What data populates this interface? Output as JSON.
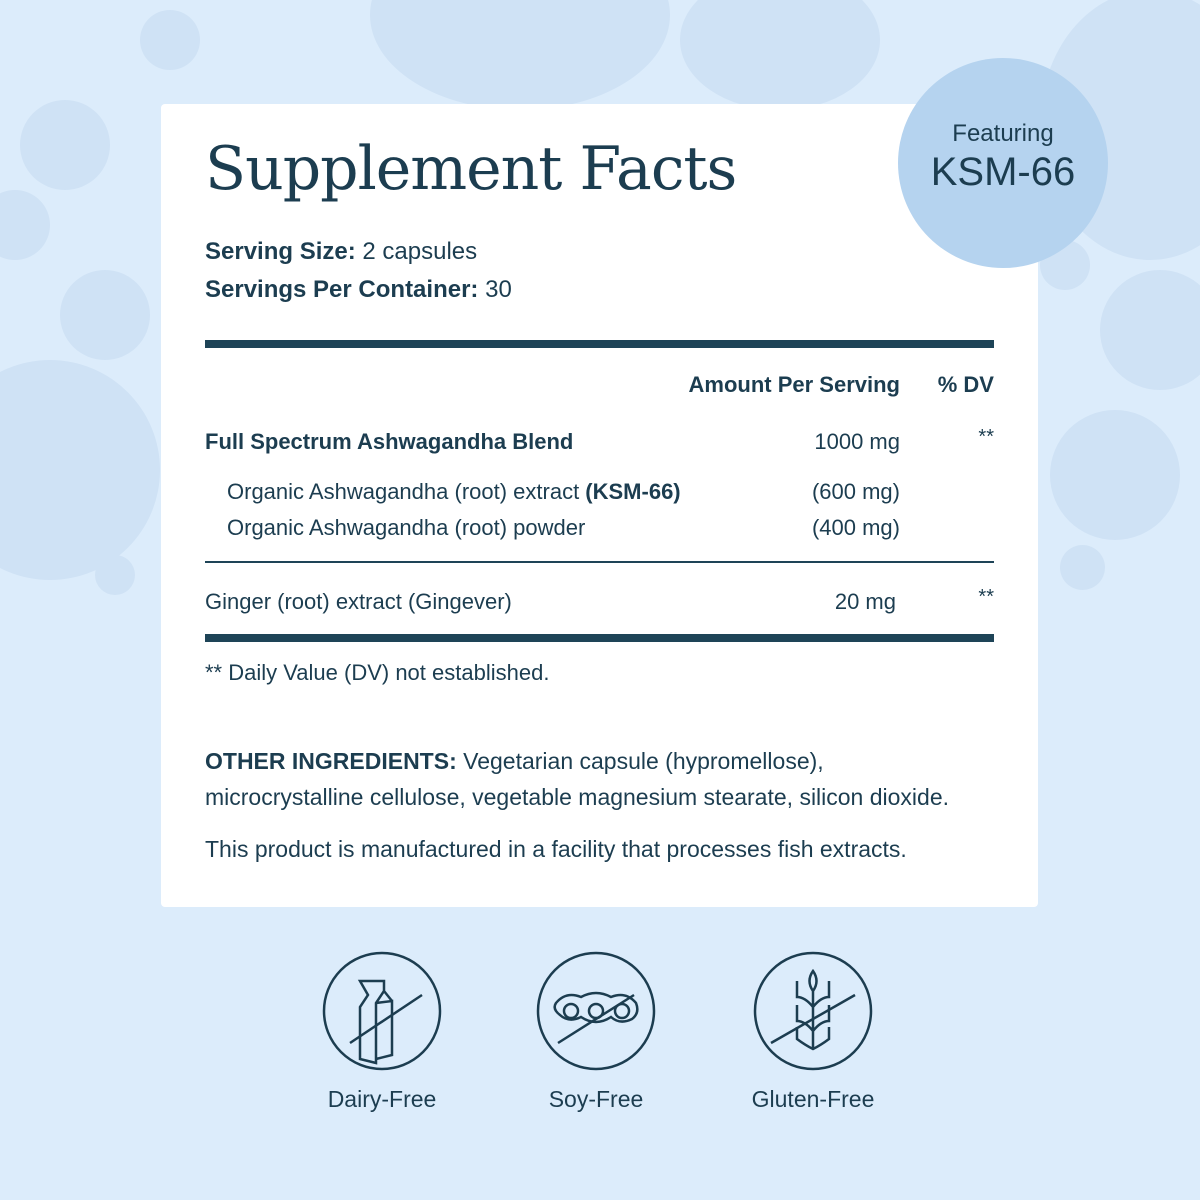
{
  "title": "Supplement Facts",
  "serving_size": {
    "label": "Serving Size:",
    "value": "2 capsules"
  },
  "servings_per_container": {
    "label": "Servings Per Container:",
    "value": "30"
  },
  "header": {
    "amount": "Amount Per Serving",
    "dv": "% DV"
  },
  "rows": [
    {
      "name": "Full Spectrum Ashwagandha Blend",
      "amount": "1000 mg",
      "dv": "**"
    },
    {
      "name": "Organic Ashwagandha (root) extract ",
      "name_bold": "(KSM-66)",
      "amount": "(600 mg)"
    },
    {
      "name": "Organic Ashwagandha (root) powder",
      "amount": "(400 mg)"
    },
    {
      "name": "Ginger (root) extract (Gingever)",
      "amount": "20 mg",
      "dv": "**"
    }
  ],
  "footnote": "** Daily Value (DV) not established.",
  "other_ingredients": {
    "label": "OTHER INGREDIENTS:",
    "line1": " Vegetarian capsule (hypromellose),",
    "line2": "microcrystalline cellulose, vegetable magnesium stearate, silicon dioxide."
  },
  "facility_note": "This product is manufactured in a facility that processes fish extracts.",
  "badge": {
    "small": "Featuring",
    "big": "KSM-66"
  },
  "badges": [
    {
      "label": "Dairy-Free",
      "icon": "milk-carton-crossed-icon"
    },
    {
      "label": "Soy-Free",
      "icon": "soybean-crossed-icon"
    },
    {
      "label": "Gluten-Free",
      "icon": "wheat-crossed-icon"
    }
  ],
  "colors": {
    "text": "#1c3d50",
    "background": "#dcecfb",
    "badge": "#b5d3ef"
  }
}
